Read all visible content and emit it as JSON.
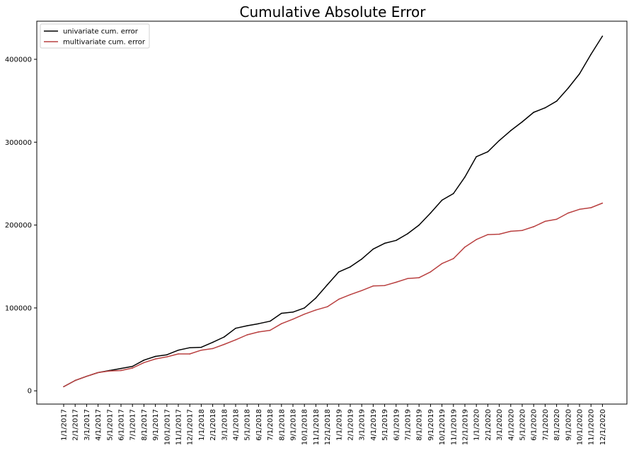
{
  "chart_data": {
    "type": "line",
    "title": "Cumulative Absolute Error",
    "xlabel": "",
    "ylabel": "",
    "categories": [
      "1/1/2017",
      "2/1/2017",
      "3/1/2017",
      "4/1/2017",
      "5/1/2017",
      "6/1/2017",
      "7/1/2017",
      "8/1/2017",
      "9/1/2017",
      "10/1/2017",
      "11/1/2017",
      "12/1/2017",
      "1/1/2018",
      "2/1/2018",
      "3/1/2018",
      "4/1/2018",
      "5/1/2018",
      "6/1/2018",
      "7/1/2018",
      "8/1/2018",
      "9/1/2018",
      "10/1/2018",
      "11/1/2018",
      "12/1/2018",
      "1/1/2019",
      "2/1/2019",
      "3/1/2019",
      "4/1/2019",
      "5/1/2019",
      "6/1/2019",
      "7/1/2019",
      "8/1/2019",
      "9/1/2019",
      "10/1/2019",
      "11/1/2019",
      "12/1/2019",
      "1/1/2020",
      "2/1/2020",
      "3/1/2020",
      "4/1/2020",
      "5/1/2020",
      "6/1/2020",
      "7/1/2020",
      "8/1/2020",
      "9/1/2020",
      "10/1/2020",
      "11/1/2020",
      "12/1/2020"
    ],
    "series": [
      {
        "name": "univariate cum. error",
        "color": "#000000",
        "values": [
          5000,
          12500,
          17500,
          22000,
          24500,
          27000,
          29500,
          37000,
          41500,
          43500,
          49000,
          52000,
          52500,
          58500,
          65000,
          75500,
          78500,
          81000,
          84000,
          93500,
          95000,
          100000,
          112000,
          128000,
          143500,
          149500,
          159000,
          171000,
          178000,
          181500,
          189500,
          200000,
          214500,
          230000,
          238000,
          258000,
          282500,
          288500,
          302000,
          314000,
          324500,
          336000,
          341500,
          349500,
          365000,
          382500,
          406000,
          428000
        ]
      },
      {
        "name": "multivariate cum. error",
        "color": "#b94040",
        "values": [
          5000,
          12500,
          17500,
          22000,
          24000,
          24500,
          27500,
          34000,
          38500,
          41000,
          44500,
          44500,
          49000,
          51000,
          56000,
          61500,
          67500,
          71000,
          73000,
          81000,
          86500,
          92500,
          97500,
          101500,
          110500,
          116000,
          121000,
          126500,
          127000,
          131000,
          135500,
          136500,
          143500,
          153500,
          159500,
          173500,
          182500,
          188500,
          189000,
          192500,
          193500,
          198000,
          204500,
          207000,
          214500,
          219000,
          221000,
          226500
        ]
      }
    ],
    "ylim": [
      -16000,
      446000
    ],
    "yticks": [
      0,
      100000,
      200000,
      300000,
      400000
    ],
    "ytick_labels": [
      "0",
      "100000",
      "200000",
      "300000",
      "400000"
    ],
    "grid": false,
    "legend_position": "top-left"
  }
}
